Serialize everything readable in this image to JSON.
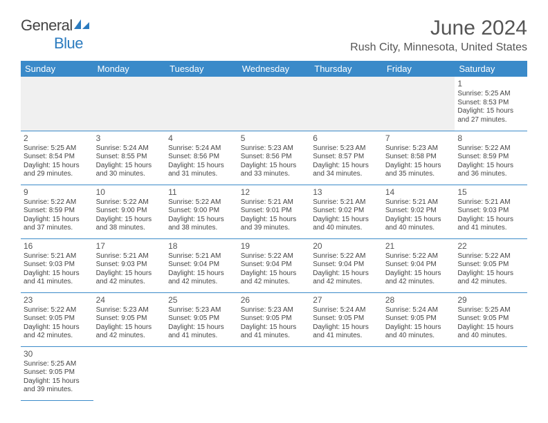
{
  "logo": {
    "word1": "General",
    "word2": "Blue"
  },
  "title": "June 2024",
  "location": "Rush City, Minnesota, United States",
  "colors": {
    "header_bg": "#3a8ac9",
    "header_fg": "#ffffff",
    "rule": "#3a8ac9",
    "empty_bg": "#f0f0f0"
  },
  "weekdays": [
    "Sunday",
    "Monday",
    "Tuesday",
    "Wednesday",
    "Thursday",
    "Friday",
    "Saturday"
  ],
  "first_weekday_index": 6,
  "days": [
    {
      "n": 1,
      "sr": "5:25 AM",
      "ss": "8:53 PM",
      "dl": "15 hours and 27 minutes."
    },
    {
      "n": 2,
      "sr": "5:25 AM",
      "ss": "8:54 PM",
      "dl": "15 hours and 29 minutes."
    },
    {
      "n": 3,
      "sr": "5:24 AM",
      "ss": "8:55 PM",
      "dl": "15 hours and 30 minutes."
    },
    {
      "n": 4,
      "sr": "5:24 AM",
      "ss": "8:56 PM",
      "dl": "15 hours and 31 minutes."
    },
    {
      "n": 5,
      "sr": "5:23 AM",
      "ss": "8:56 PM",
      "dl": "15 hours and 33 minutes."
    },
    {
      "n": 6,
      "sr": "5:23 AM",
      "ss": "8:57 PM",
      "dl": "15 hours and 34 minutes."
    },
    {
      "n": 7,
      "sr": "5:23 AM",
      "ss": "8:58 PM",
      "dl": "15 hours and 35 minutes."
    },
    {
      "n": 8,
      "sr": "5:22 AM",
      "ss": "8:59 PM",
      "dl": "15 hours and 36 minutes."
    },
    {
      "n": 9,
      "sr": "5:22 AM",
      "ss": "8:59 PM",
      "dl": "15 hours and 37 minutes."
    },
    {
      "n": 10,
      "sr": "5:22 AM",
      "ss": "9:00 PM",
      "dl": "15 hours and 38 minutes."
    },
    {
      "n": 11,
      "sr": "5:22 AM",
      "ss": "9:00 PM",
      "dl": "15 hours and 38 minutes."
    },
    {
      "n": 12,
      "sr": "5:21 AM",
      "ss": "9:01 PM",
      "dl": "15 hours and 39 minutes."
    },
    {
      "n": 13,
      "sr": "5:21 AM",
      "ss": "9:02 PM",
      "dl": "15 hours and 40 minutes."
    },
    {
      "n": 14,
      "sr": "5:21 AM",
      "ss": "9:02 PM",
      "dl": "15 hours and 40 minutes."
    },
    {
      "n": 15,
      "sr": "5:21 AM",
      "ss": "9:03 PM",
      "dl": "15 hours and 41 minutes."
    },
    {
      "n": 16,
      "sr": "5:21 AM",
      "ss": "9:03 PM",
      "dl": "15 hours and 41 minutes."
    },
    {
      "n": 17,
      "sr": "5:21 AM",
      "ss": "9:03 PM",
      "dl": "15 hours and 42 minutes."
    },
    {
      "n": 18,
      "sr": "5:21 AM",
      "ss": "9:04 PM",
      "dl": "15 hours and 42 minutes."
    },
    {
      "n": 19,
      "sr": "5:22 AM",
      "ss": "9:04 PM",
      "dl": "15 hours and 42 minutes."
    },
    {
      "n": 20,
      "sr": "5:22 AM",
      "ss": "9:04 PM",
      "dl": "15 hours and 42 minutes."
    },
    {
      "n": 21,
      "sr": "5:22 AM",
      "ss": "9:04 PM",
      "dl": "15 hours and 42 minutes."
    },
    {
      "n": 22,
      "sr": "5:22 AM",
      "ss": "9:05 PM",
      "dl": "15 hours and 42 minutes."
    },
    {
      "n": 23,
      "sr": "5:22 AM",
      "ss": "9:05 PM",
      "dl": "15 hours and 42 minutes."
    },
    {
      "n": 24,
      "sr": "5:23 AM",
      "ss": "9:05 PM",
      "dl": "15 hours and 42 minutes."
    },
    {
      "n": 25,
      "sr": "5:23 AM",
      "ss": "9:05 PM",
      "dl": "15 hours and 41 minutes."
    },
    {
      "n": 26,
      "sr": "5:23 AM",
      "ss": "9:05 PM",
      "dl": "15 hours and 41 minutes."
    },
    {
      "n": 27,
      "sr": "5:24 AM",
      "ss": "9:05 PM",
      "dl": "15 hours and 41 minutes."
    },
    {
      "n": 28,
      "sr": "5:24 AM",
      "ss": "9:05 PM",
      "dl": "15 hours and 40 minutes."
    },
    {
      "n": 29,
      "sr": "5:25 AM",
      "ss": "9:05 PM",
      "dl": "15 hours and 40 minutes."
    },
    {
      "n": 30,
      "sr": "5:25 AM",
      "ss": "9:05 PM",
      "dl": "15 hours and 39 minutes."
    }
  ],
  "labels": {
    "sunrise": "Sunrise:",
    "sunset": "Sunset:",
    "daylight": "Daylight:"
  }
}
